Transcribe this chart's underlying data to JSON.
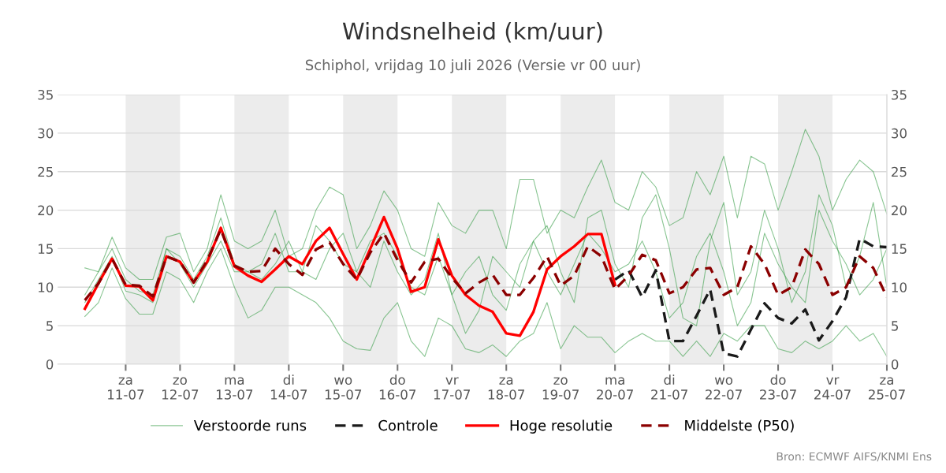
{
  "chart_data": {
    "type": "line",
    "title": "Windsnelheid (km/uur)",
    "subtitle": "Schiphol, vrijdag 10 juli 2026 (Versie vr 00 uur)",
    "annotations": [
      "Bron: ECMWF AIFS/KNMI Ens"
    ],
    "x": [
      "2026-07-10T06:00",
      "2026-07-10T12:00",
      "2026-07-10T18:00",
      "2026-07-11T00:00",
      "2026-07-11T06:00",
      "2026-07-11T12:00",
      "2026-07-11T18:00",
      "2026-07-12T00:00",
      "2026-07-12T06:00",
      "2026-07-12T12:00",
      "2026-07-12T18:00",
      "2026-07-13T00:00",
      "2026-07-13T06:00",
      "2026-07-13T12:00",
      "2026-07-13T18:00",
      "2026-07-14T00:00",
      "2026-07-14T06:00",
      "2026-07-14T12:00",
      "2026-07-14T18:00",
      "2026-07-15T00:00",
      "2026-07-15T06:00",
      "2026-07-15T12:00",
      "2026-07-15T18:00",
      "2026-07-16T00:00",
      "2026-07-16T06:00",
      "2026-07-16T12:00",
      "2026-07-16T18:00",
      "2026-07-17T00:00",
      "2026-07-17T06:00",
      "2026-07-17T12:00",
      "2026-07-17T18:00",
      "2026-07-18T00:00",
      "2026-07-18T06:00",
      "2026-07-18T12:00",
      "2026-07-18T18:00",
      "2026-07-19T00:00",
      "2026-07-19T06:00",
      "2026-07-19T12:00",
      "2026-07-19T18:00",
      "2026-07-20T00:00",
      "2026-07-20T06:00",
      "2026-07-20T12:00",
      "2026-07-20T18:00",
      "2026-07-21T00:00",
      "2026-07-21T06:00",
      "2026-07-21T12:00",
      "2026-07-21T18:00",
      "2026-07-22T00:00",
      "2026-07-22T06:00",
      "2026-07-22T12:00",
      "2026-07-22T18:00",
      "2026-07-23T00:00",
      "2026-07-23T06:00",
      "2026-07-23T12:00",
      "2026-07-23T18:00",
      "2026-07-24T00:00",
      "2026-07-24T06:00",
      "2026-07-24T12:00",
      "2026-07-24T18:00",
      "2026-07-25T00:00"
    ],
    "series": [
      {
        "name": "Verstoorde runs",
        "color": "#3a9e4a",
        "values": [
          12.5,
          12,
          16.5,
          12.5,
          11,
          11,
          16.5,
          17,
          12,
          15,
          22,
          16,
          15,
          16,
          20,
          14,
          15,
          20,
          23,
          22,
          15,
          18,
          22.5,
          20,
          15,
          14,
          21,
          18,
          17,
          20,
          20,
          15,
          24,
          24,
          17,
          20,
          19,
          23,
          26.5,
          21,
          20,
          25,
          23,
          18,
          19,
          25,
          22,
          27,
          19,
          27,
          26,
          20,
          25,
          30.5,
          27,
          20,
          24,
          26.5,
          25,
          19.5
        ]
      },
      {
        "color": "#3a9e4a",
        "values": [
          6.2,
          8,
          12.5,
          8.5,
          6.5,
          6.5,
          12,
          11,
          8,
          12,
          15,
          10,
          6,
          7,
          10,
          10,
          9,
          8,
          6,
          3,
          2,
          1.8,
          6,
          8,
          3,
          1,
          6,
          5,
          2,
          1.5,
          2.5,
          1,
          3,
          4,
          8,
          2,
          5,
          3.5,
          3.5,
          1.5,
          3,
          4,
          3,
          3,
          1,
          3,
          1,
          4,
          3,
          5,
          5,
          2,
          1.5,
          3,
          2,
          3,
          5,
          3,
          4,
          1
        ]
      },
      {
        "color": "#3a9e4a",
        "values": [
          9,
          12,
          15,
          11,
          9.5,
          9,
          15,
          14,
          11,
          14,
          19,
          13,
          12,
          11,
          13,
          16,
          12,
          11,
          15,
          17,
          12,
          10,
          16,
          12,
          9,
          11,
          17,
          9,
          4,
          7,
          14,
          12,
          10,
          16,
          18,
          12,
          8,
          19,
          20,
          13,
          10,
          19,
          22,
          15,
          6,
          5,
          16,
          21,
          9,
          12,
          20,
          15,
          8,
          12,
          22,
          18,
          10,
          14,
          21,
          10
        ]
      },
      {
        "color": "#3a9e4a",
        "values": [
          8,
          11,
          14,
          9.5,
          9,
          8,
          15,
          13,
          10,
          13,
          16,
          12,
          12,
          13,
          17,
          12,
          12,
          18,
          16,
          13,
          12,
          16,
          17,
          14,
          10,
          9,
          14,
          9,
          12,
          14,
          9,
          7,
          13,
          16,
          12,
          9,
          13,
          17,
          15,
          12,
          13,
          16,
          12,
          6,
          8,
          14,
          17,
          12,
          5,
          8,
          17,
          13,
          10,
          8,
          20,
          16,
          13,
          9,
          11,
          15
        ]
      },
      {
        "name": "Controle",
        "color": "#1a1a1a",
        "line_style": "dashed",
        "values": [
          null,
          null,
          null,
          null,
          null,
          null,
          null,
          null,
          null,
          null,
          null,
          null,
          null,
          null,
          null,
          null,
          null,
          null,
          null,
          null,
          null,
          null,
          null,
          null,
          null,
          null,
          null,
          null,
          null,
          null,
          null,
          null,
          null,
          null,
          null,
          null,
          null,
          null,
          null,
          11.0,
          12.2,
          8.7,
          12.2,
          3.0,
          3.0,
          6.3,
          9.7,
          1.4,
          1.0,
          4.5,
          7.9,
          6.0,
          5.3,
          7.1,
          3.1,
          5.6,
          8.7,
          16.3,
          15.3,
          15.2
        ]
      },
      {
        "name": "Hoge resolutie",
        "color": "#ff0000",
        "line_style": "solid",
        "values": [
          7.2,
          10.5,
          13.7,
          10.2,
          10.1,
          8.3,
          14.0,
          13.3,
          10.6,
          13.3,
          17.7,
          12.7,
          11.5,
          10.7,
          12.3,
          14.0,
          13.0,
          16.0,
          17.7,
          14.3,
          11.0,
          15.0,
          19.1,
          15.0,
          9.4,
          10.0,
          16.2,
          11.5,
          9.0,
          7.6,
          6.8,
          4.0,
          3.7,
          6.8,
          12.3,
          14.0,
          15.3,
          16.9,
          16.9,
          10.3,
          null,
          null,
          null,
          null,
          null,
          null,
          null,
          null,
          null,
          null,
          null,
          null,
          null,
          null,
          null,
          null,
          null,
          null,
          null,
          null
        ]
      },
      {
        "name": "Middelste (P50)",
        "color": "#8b0000",
        "line_style": "dashed",
        "values": [
          8.3,
          10.5,
          13.7,
          10.3,
          10.2,
          8.8,
          14.0,
          13.3,
          10.6,
          13.5,
          17.5,
          12.8,
          12.0,
          12.1,
          15.0,
          13.0,
          11.6,
          14.9,
          15.8,
          13.0,
          11.0,
          14.5,
          17.0,
          13.5,
          10.6,
          13.3,
          13.7,
          11.2,
          9.2,
          10.6,
          11.6,
          9.0,
          9.0,
          11.2,
          14.0,
          10.2,
          11.5,
          15.3,
          14.0,
          9.7,
          11.5,
          14.2,
          13.5,
          9.2,
          10.0,
          12.3,
          12.5,
          9.0,
          10.0,
          15.3,
          13.0,
          9.0,
          10.0,
          14.9,
          13.0,
          9.0,
          10.0,
          14.0,
          12.5,
          8.7
        ]
      }
    ],
    "xlim": [
      "2026-07-09T18:00",
      "2026-07-25T00:00"
    ],
    "xticks": [
      {
        "value": "2026-07-11",
        "label": "za\n11-07"
      },
      {
        "value": "2026-07-12",
        "label": "zo\n12-07"
      },
      {
        "value": "2026-07-13",
        "label": "ma\n13-07"
      },
      {
        "value": "2026-07-14",
        "label": "di\n14-07"
      },
      {
        "value": "2026-07-15",
        "label": "wo\n15-07"
      },
      {
        "value": "2026-07-16",
        "label": "do\n16-07"
      },
      {
        "value": "2026-07-17",
        "label": "vr\n17-07"
      },
      {
        "value": "2026-07-18",
        "label": "za\n18-07"
      },
      {
        "value": "2026-07-19",
        "label": "zo\n19-07"
      },
      {
        "value": "2026-07-20",
        "label": "ma\n20-07"
      },
      {
        "value": "2026-07-21",
        "label": "di\n21-07"
      },
      {
        "value": "2026-07-22",
        "label": "wo\n22-07"
      },
      {
        "value": "2026-07-23",
        "label": "do\n23-07"
      },
      {
        "value": "2026-07-24",
        "label": "vr\n24-07"
      },
      {
        "value": "2026-07-25",
        "label": "za\n25-07"
      }
    ],
    "ylim": [
      0,
      35
    ],
    "yticks": [
      0,
      5,
      10,
      15,
      20,
      25,
      30,
      35
    ],
    "y2lim": [
      0,
      35
    ],
    "y2ticks": [
      0,
      5,
      10,
      15,
      20,
      25,
      30,
      35
    ],
    "bands": [
      {
        "axis": "x",
        "from": "2026-07-11",
        "to": "2026-07-12",
        "color": "#ececec"
      },
      {
        "axis": "x",
        "from": "2026-07-13",
        "to": "2026-07-14",
        "color": "#ececec"
      },
      {
        "axis": "x",
        "from": "2026-07-15",
        "to": "2026-07-16",
        "color": "#ececec"
      },
      {
        "axis": "x",
        "from": "2026-07-17",
        "to": "2026-07-18",
        "color": "#ececec"
      },
      {
        "axis": "x",
        "from": "2026-07-19",
        "to": "2026-07-20",
        "color": "#ececec"
      },
      {
        "axis": "x",
        "from": "2026-07-21",
        "to": "2026-07-22",
        "color": "#ececec"
      },
      {
        "axis": "x",
        "from": "2026-07-23",
        "to": "2026-07-24",
        "color": "#ececec"
      }
    ],
    "grid": "y",
    "legend": "bottom",
    "marker": "none"
  }
}
